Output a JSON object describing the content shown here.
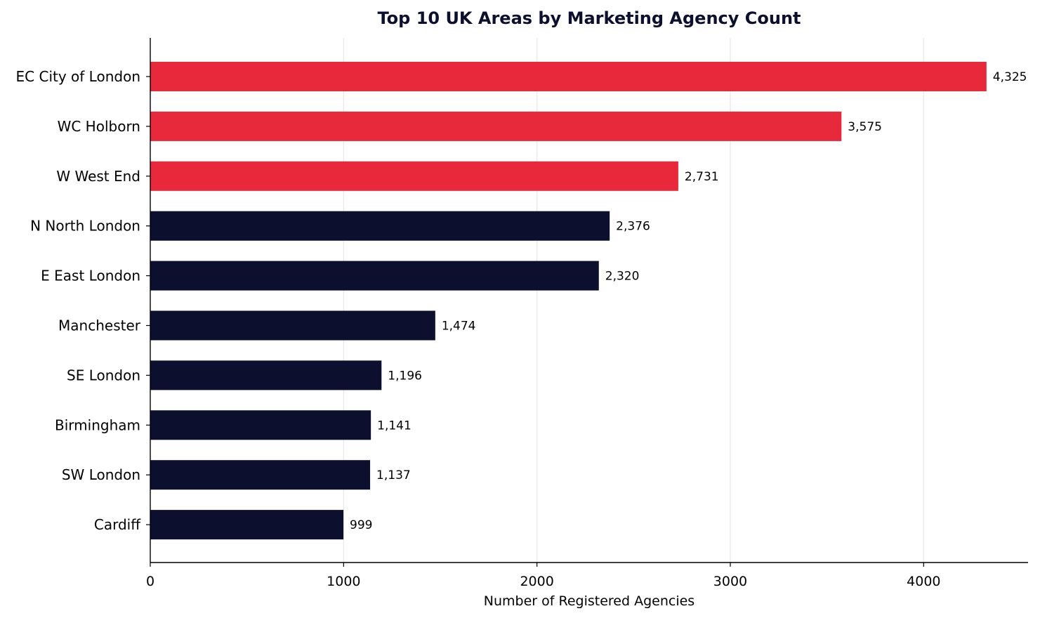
{
  "chart_data": {
    "type": "bar",
    "orientation": "horizontal",
    "title": "Top 10 UK Areas by Marketing Agency Count",
    "xlabel": "Number of Registered Agencies",
    "ylabel": "",
    "xlim": [
      0,
      4540
    ],
    "xticks": [
      0,
      1000,
      2000,
      3000,
      4000
    ],
    "grid": "x",
    "categories": [
      "EC City of London",
      "WC Holborn",
      "W West End",
      "N North London",
      "E East London",
      "Manchester",
      "SE London",
      "Birmingham",
      "SW London",
      "Cardiff"
    ],
    "values": [
      4325,
      3575,
      2731,
      2376,
      2320,
      1474,
      1196,
      1141,
      1137,
      999
    ],
    "value_labels": [
      "4,325",
      "3,575",
      "2,731",
      "2,376",
      "2,320",
      "1,474",
      "1,196",
      "1,141",
      "1,137",
      "999"
    ],
    "bar_colors": [
      "#e8293b",
      "#e8293b",
      "#e8293b",
      "#0c0f2e",
      "#0c0f2e",
      "#0c0f2e",
      "#0c0f2e",
      "#0c0f2e",
      "#0c0f2e",
      "#0c0f2e"
    ]
  }
}
